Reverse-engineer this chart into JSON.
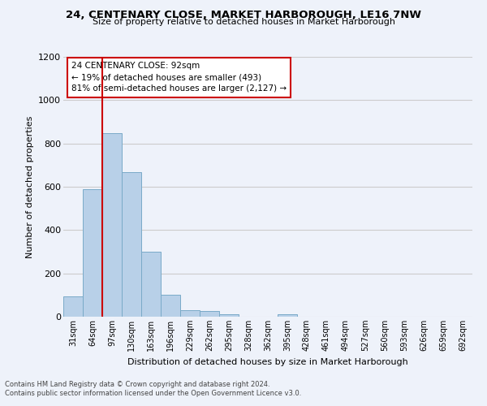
{
  "title1": "24, CENTENARY CLOSE, MARKET HARBOROUGH, LE16 7NW",
  "title2": "Size of property relative to detached houses in Market Harborough",
  "xlabel": "Distribution of detached houses by size in Market Harborough",
  "ylabel": "Number of detached properties",
  "bar_labels": [
    "31sqm",
    "64sqm",
    "97sqm",
    "130sqm",
    "163sqm",
    "196sqm",
    "229sqm",
    "262sqm",
    "295sqm",
    "328sqm",
    "362sqm",
    "395sqm",
    "428sqm",
    "461sqm",
    "494sqm",
    "527sqm",
    "560sqm",
    "593sqm",
    "626sqm",
    "659sqm",
    "692sqm"
  ],
  "bar_values": [
    95,
    590,
    848,
    668,
    300,
    100,
    30,
    25,
    12,
    0,
    0,
    13,
    0,
    0,
    0,
    0,
    0,
    0,
    0,
    0,
    0
  ],
  "bar_color": "#b8d0e8",
  "bar_edge_color": "#7aaac8",
  "ylim": [
    0,
    1200
  ],
  "yticks": [
    0,
    200,
    400,
    600,
    800,
    1000,
    1200
  ],
  "annotation_text": "24 CENTENARY CLOSE: 92sqm\n← 19% of detached houses are smaller (493)\n81% of semi-detached houses are larger (2,127) →",
  "footer1": "Contains HM Land Registry data © Crown copyright and database right 2024.",
  "footer2": "Contains public sector information licensed under the Open Government Licence v3.0.",
  "vline_color": "#cc0000",
  "annotation_box_color": "#ffffff",
  "annotation_box_edge": "#cc0000",
  "grid_color": "#cccccc",
  "background_color": "#eef2fa"
}
